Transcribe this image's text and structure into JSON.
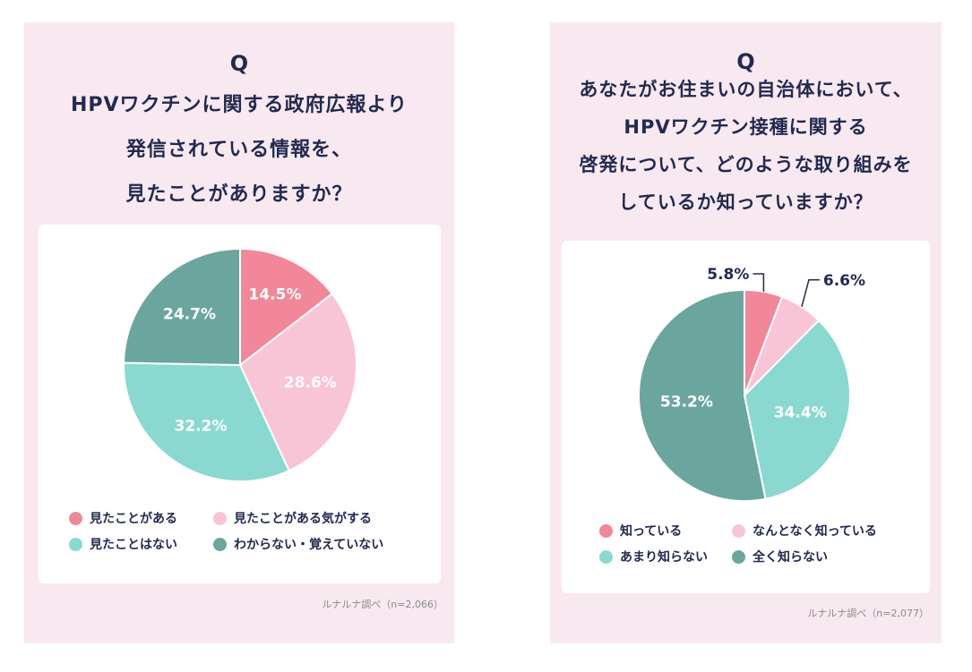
{
  "colors": {
    "pink_dark": "#f2879a",
    "pink_light": "#f9c4d6",
    "teal_light": "#8ad9d0",
    "teal_dark": "#6ba69e",
    "panel_bg": "#f8e9f0",
    "text_navy": "#222a4f"
  },
  "left": {
    "q": "Q",
    "question_lines": [
      "HPVワクチンに関する政府広報より",
      "発信されている情報を、",
      "見たことがありますか？"
    ],
    "source": "ルナルナ調べ（n=2,066）"
  },
  "right": {
    "q": "Q",
    "question_lines": [
      "あなたがお住まいの自治体において、",
      "HPVワクチン接種に関する",
      "啓発について、どのような取り組みを",
      "しているか知っていますか？"
    ],
    "source": "ルナルナ調べ（n=2,077）"
  },
  "chart_data": [
    {
      "type": "pie",
      "title": "HPVワクチンに関する政府広報より発信されている情報を、見たことがありますか？",
      "categories": [
        "見たことがある",
        "見たことがある気がする",
        "見たことはない",
        "わからない・覚えていない"
      ],
      "values": [
        14.5,
        28.6,
        32.2,
        24.7
      ],
      "labels": [
        "14.5%",
        "28.6%",
        "32.2%",
        "24.7%"
      ],
      "colors": [
        "#f2879a",
        "#f9c4d6",
        "#8ad9d0",
        "#6ba69e"
      ],
      "legend": "bottom"
    },
    {
      "type": "pie",
      "title": "あなたがお住まいの自治体において、HPVワクチン接種に関する啓発について、どのような取り組みをしているか知っていますか？",
      "categories": [
        "知っている",
        "なんとなく知っている",
        "あまり知らない",
        "全く知らない"
      ],
      "values": [
        5.8,
        6.6,
        34.4,
        53.2
      ],
      "labels": [
        "5.8%",
        "6.6%",
        "34.4%",
        "53.2%"
      ],
      "colors": [
        "#f2879a",
        "#f9c4d6",
        "#8ad9d0",
        "#6ba69e"
      ],
      "legend": "bottom"
    }
  ]
}
